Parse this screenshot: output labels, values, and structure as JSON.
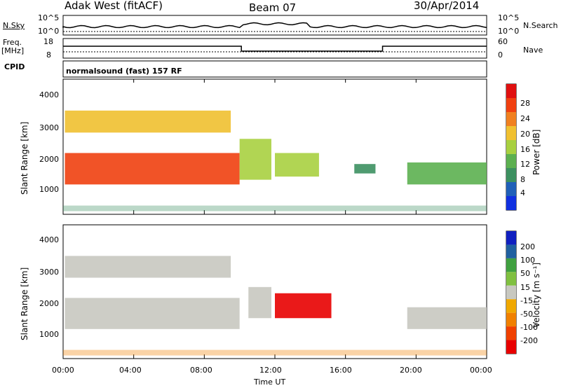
{
  "header": {
    "radar": "Adak West (fitACF)",
    "beam": "Beam 07",
    "date": "30/Apr/2014"
  },
  "top_panels": {
    "nsky_label": "N.Sky",
    "nsky_ticks": [
      "10^5",
      "10^0"
    ],
    "nsearch_label": "N.Search",
    "nsearch_ticks": [
      "10^5",
      "10^0"
    ],
    "freq_label": "Freq.",
    "freq_unit": "[MHz]",
    "freq_ticks": [
      "18",
      "8"
    ],
    "nave_label": "Nave",
    "nave_ticks": [
      "60",
      "0"
    ],
    "cpid_label": "CPID",
    "cpid_value": "normalsound (fast) 157 RF"
  },
  "colors": {
    "power_scale": [
      "#1030e0",
      "#2060b8",
      "#3c9060",
      "#5cb050",
      "#a8d040",
      "#f0c030",
      "#f08020",
      "#f04010",
      "#e01010"
    ],
    "velocity_scale": [
      "#e80000",
      "#f04000",
      "#f08000",
      "#f0a800",
      "#c8c8c0",
      "#80c040",
      "#40a040",
      "#2060a0",
      "#1020c0"
    ],
    "ground_scatter": "#c8c8c0"
  },
  "chart_data": [
    {
      "type": "heatmap",
      "panel": "power",
      "xlabel": "",
      "ylabel": "Slant Range [km]",
      "yticks": [
        "1000",
        "2000",
        "3000",
        "4000"
      ],
      "ylim": [
        200,
        4500
      ],
      "xticks": [
        "00:00",
        "04:00",
        "08:00",
        "12:00",
        "16:00",
        "20:00",
        "00:00"
      ],
      "colorbar": {
        "label": "Power [dB]",
        "ticks": [
          "4",
          "8",
          "12",
          "16",
          "20",
          "24",
          "28"
        ]
      },
      "regions": [
        {
          "t0": 0.1,
          "t1": 10.0,
          "r0": 1150,
          "r1": 2150,
          "level": 7
        },
        {
          "t0": 10.0,
          "t1": 11.8,
          "r0": 1300,
          "r1": 2600,
          "level": 4
        },
        {
          "t0": 12.0,
          "t1": 14.5,
          "r0": 1400,
          "r1": 2150,
          "level": 4
        },
        {
          "t0": 0.1,
          "t1": 9.5,
          "r0": 2800,
          "r1": 3500,
          "level": 5
        },
        {
          "t0": 16.5,
          "t1": 17.7,
          "r0": 1500,
          "r1": 1800,
          "level": 2
        },
        {
          "t0": 19.5,
          "t1": 24.0,
          "r0": 1150,
          "r1": 1850,
          "level": 3
        }
      ]
    },
    {
      "type": "heatmap",
      "panel": "velocity",
      "xlabel": "Time UT",
      "ylabel": "Slant Range [km]",
      "yticks": [
        "1000",
        "2000",
        "3000",
        "4000"
      ],
      "ylim": [
        200,
        4500
      ],
      "xticks": [
        "00:00",
        "04:00",
        "08:00",
        "12:00",
        "16:00",
        "20:00",
        "00:00"
      ],
      "colorbar": {
        "label": "Velocity [m s⁻¹]",
        "ticks": [
          "200",
          "100",
          "50",
          "15",
          "-15",
          "-50",
          "-100",
          "-200"
        ]
      },
      "regions": [
        {
          "t0": 0.1,
          "t1": 10.0,
          "r0": 1150,
          "r1": 2150,
          "level": 4
        },
        {
          "t0": 0.1,
          "t1": 9.5,
          "r0": 2800,
          "r1": 3500,
          "level": 4
        },
        {
          "t0": 10.5,
          "t1": 11.8,
          "r0": 1500,
          "r1": 2500,
          "level": 4
        },
        {
          "t0": 12.0,
          "t1": 15.2,
          "r0": 1500,
          "r1": 2300,
          "level": 0
        },
        {
          "t0": 19.5,
          "t1": 24.0,
          "r0": 1150,
          "r1": 1850,
          "level": 4
        }
      ]
    }
  ]
}
